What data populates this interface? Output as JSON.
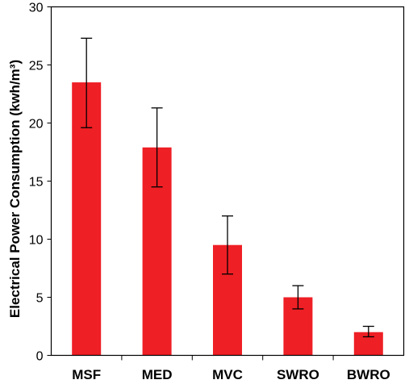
{
  "chart_data": {
    "type": "bar",
    "title": "",
    "xlabel": "",
    "ylabel": "Electrical Power Consumption (kwh/m³)",
    "ylim": [
      0,
      30
    ],
    "yticks": [
      0,
      5,
      10,
      15,
      20,
      25,
      30
    ],
    "grid": false,
    "legend": "none",
    "bar_color": "#ee1f25",
    "categories": [
      "MSF",
      "MED",
      "MVC",
      "SWRO",
      "BWRO"
    ],
    "values": [
      23.5,
      17.9,
      9.5,
      5.0,
      2.0
    ],
    "error_low": [
      19.6,
      14.5,
      7.0,
      4.0,
      1.6
    ],
    "error_high": [
      27.3,
      21.3,
      12.0,
      6.0,
      2.5
    ]
  }
}
